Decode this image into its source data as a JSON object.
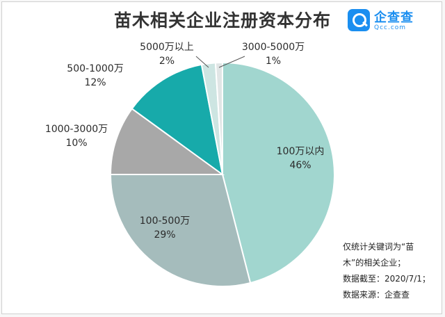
{
  "header": {
    "title": "苗木相关企业注册资本分布",
    "logo_name": "企查查",
    "logo_sub": "Qcc.com"
  },
  "notes": [
    "仅统计关键词为“苗",
    "木”的相关企业；",
    "数据截至：2020/7/1；",
    "数据来源：企查查"
  ],
  "chart_data": {
    "type": "pie",
    "title": "苗木相关企业注册资本分布",
    "slices": [
      {
        "label": "100万以内",
        "value": 46,
        "value_label": "46%",
        "color": "#a1d6cf"
      },
      {
        "label": "100-500万",
        "value": 29,
        "value_label": "29%",
        "color": "#a5bcbc"
      },
      {
        "label": "1000-3000万",
        "value": 10,
        "value_label": "10%",
        "color": "#a8a8a8"
      },
      {
        "label": "500-1000万",
        "value": 12,
        "value_label": "12%",
        "color": "#17aaaa"
      },
      {
        "label": "5000万以上",
        "value": 2,
        "value_label": "2%",
        "color": "#cde5e2"
      },
      {
        "label": "3000-5000万",
        "value": 1,
        "value_label": "1%",
        "color": "#e1e6e6"
      }
    ]
  }
}
